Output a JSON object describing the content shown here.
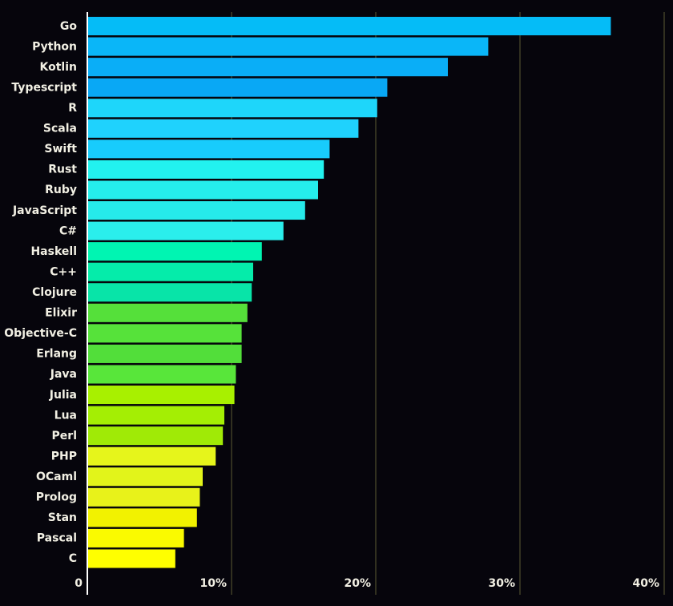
{
  "chart_data": {
    "type": "hbar",
    "categories": [
      "Go",
      "Python",
      "Kotlin",
      "Typescript",
      "R",
      "Scala",
      "Swift",
      "Rust",
      "Ruby",
      "JavaScript",
      "C#",
      "Haskell",
      "C++",
      "Clojure",
      "Elixir",
      "Objective-C",
      "Erlang",
      "Java",
      "Julia",
      "Lua",
      "Perl",
      "PHP",
      "OCaml",
      "Prolog",
      "Stan",
      "Pascal",
      "C"
    ],
    "values": [
      36.3,
      27.8,
      25.0,
      20.8,
      20.1,
      18.8,
      16.8,
      16.4,
      16.0,
      15.1,
      13.6,
      12.1,
      11.5,
      11.4,
      11.1,
      10.7,
      10.7,
      10.3,
      10.2,
      9.5,
      9.4,
      8.9,
      8.0,
      7.8,
      7.6,
      6.7,
      6.1
    ],
    "colors": [
      "#05bcf7",
      "#0ab6f8",
      "#0aaef7",
      "#09a8f5",
      "#1ed6fa",
      "#1fd2fd",
      "#18ccfc",
      "#22f2ef",
      "#25eeec",
      "#26eaea",
      "#2aeeec",
      "#00f5b2",
      "#05ecaa",
      "#08e4a8",
      "#55e03a",
      "#56e23a",
      "#52de3a",
      "#58e63a",
      "#a8f000",
      "#a4ee04",
      "#a0ea06",
      "#e6f51b",
      "#e2f41a",
      "#e8f21a",
      "#f2f200",
      "#fafa00",
      "#ffff00"
    ],
    "xlim": [
      0,
      40
    ],
    "xticks": [
      0,
      {
        "value": 10,
        "label": "10%"
      },
      {
        "value": 20,
        "label": "20%"
      },
      {
        "value": 30,
        "label": "30%"
      },
      {
        "value": 40,
        "label": "40%"
      }
    ],
    "grid": true
  }
}
